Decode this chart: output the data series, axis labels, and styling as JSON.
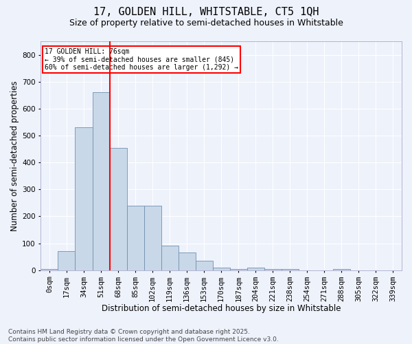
{
  "title_line1": "17, GOLDEN HILL, WHITSTABLE, CT5 1QH",
  "title_line2": "Size of property relative to semi-detached houses in Whitstable",
  "xlabel": "Distribution of semi-detached houses by size in Whitstable",
  "ylabel": "Number of semi-detached properties",
  "bin_labels": [
    "0sqm",
    "17sqm",
    "34sqm",
    "51sqm",
    "68sqm",
    "85sqm",
    "102sqm",
    "119sqm",
    "136sqm",
    "153sqm",
    "170sqm",
    "187sqm",
    "204sqm",
    "221sqm",
    "238sqm",
    "254sqm",
    "271sqm",
    "288sqm",
    "305sqm",
    "322sqm",
    "339sqm"
  ],
  "bar_values": [
    5,
    70,
    530,
    660,
    455,
    240,
    240,
    90,
    65,
    35,
    10,
    5,
    10,
    5,
    5,
    0,
    0,
    5,
    0,
    0,
    0
  ],
  "bar_color": "#c8d8e8",
  "bar_edge_color": "#7090b0",
  "vline_x": 3.5,
  "vline_color": "red",
  "annotation_text": "17 GOLDEN HILL: 76sqm\n← 39% of semi-detached houses are smaller (845)\n60% of semi-detached houses are larger (1,292) →",
  "annotation_box_color": "white",
  "annotation_box_edge": "red",
  "ylim": [
    0,
    850
  ],
  "yticks": [
    0,
    100,
    200,
    300,
    400,
    500,
    600,
    700,
    800
  ],
  "footnote": "Contains HM Land Registry data © Crown copyright and database right 2025.\nContains public sector information licensed under the Open Government Licence v3.0.",
  "bg_color": "#eef2fb",
  "grid_color": "#ffffff",
  "title_fontsize": 11,
  "subtitle_fontsize": 9,
  "axis_label_fontsize": 8.5,
  "tick_fontsize": 7.5,
  "footnote_fontsize": 6.5
}
